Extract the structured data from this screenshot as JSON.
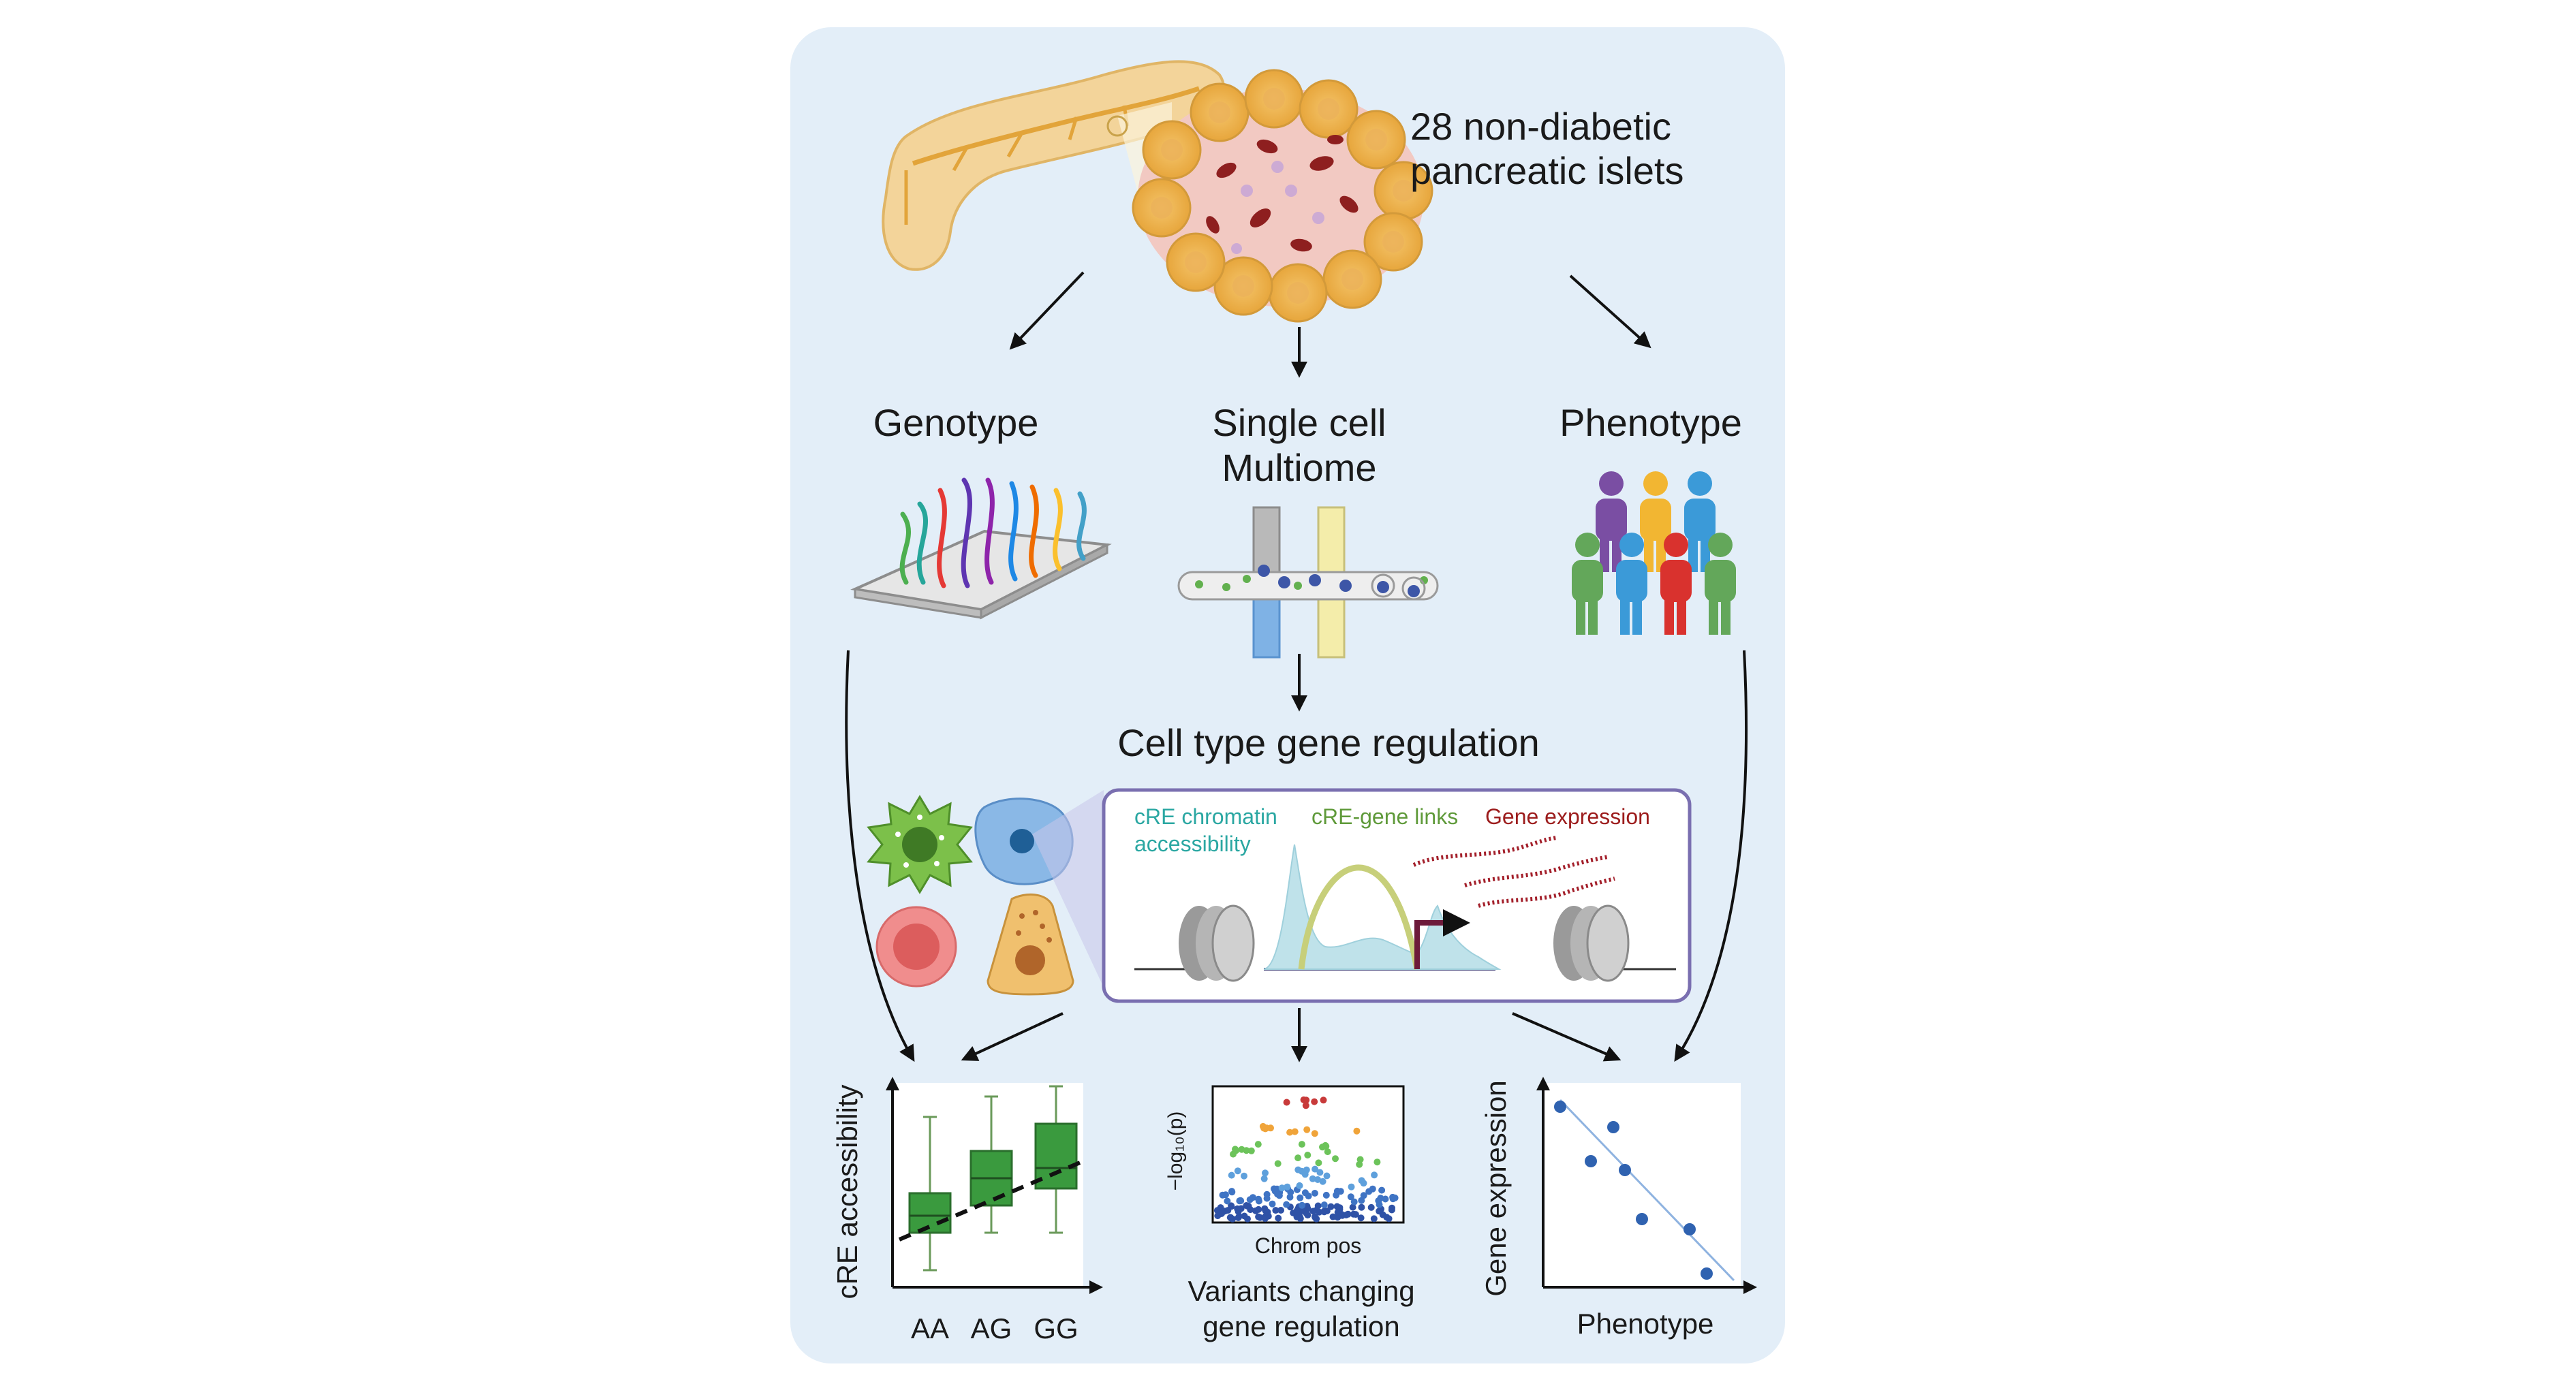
{
  "header": {
    "line1": "28 non-diabetic",
    "line2": "pancreatic islets"
  },
  "sections": {
    "genotype": "Genotype",
    "multiome_line1": "Single cell",
    "multiome_line2": "Multiome",
    "phenotype": "Phenotype",
    "cell_type_regulation": "Cell type gene regulation"
  },
  "regulation_panel": {
    "chromatin_line1": "cRE chromatin",
    "chromatin_line2": "accessibility",
    "links": "cRE-gene links",
    "expression": "Gene expression"
  },
  "boxplot": {
    "ylabel": "cRE accessibility",
    "categories": [
      "AA",
      "AG",
      "GG"
    ]
  },
  "manhattan": {
    "ylabel": "−log₁₀(p)",
    "xlabel": "Chrom pos",
    "caption_line1": "Variants changing",
    "caption_line2": "gene regulation"
  },
  "scatter": {
    "ylabel": "Gene expression",
    "xlabel": "Phenotype"
  },
  "colors": {
    "panel_bg": "#e3eef8",
    "box_green": "#3a9a3e",
    "point_blue": "#2f62b0",
    "teal_text": "#2aa7a2",
    "green_text": "#5f9a3a",
    "red_text": "#9c1c1c",
    "frame_purple": "#7a6fb0"
  },
  "chart_data": [
    {
      "type": "box",
      "categories": [
        "AA",
        "AG",
        "GG"
      ],
      "ylabel": "cRE accessibility",
      "xlabel": "",
      "trend": "increasing"
    },
    {
      "type": "scatter",
      "xlabel": "Chrom pos",
      "ylabel": "−log₁₀(p)",
      "note": "schematic manhattan-style plot"
    },
    {
      "type": "scatter",
      "xlabel": "Phenotype",
      "ylabel": "Gene expression",
      "trend": "decreasing"
    }
  ]
}
